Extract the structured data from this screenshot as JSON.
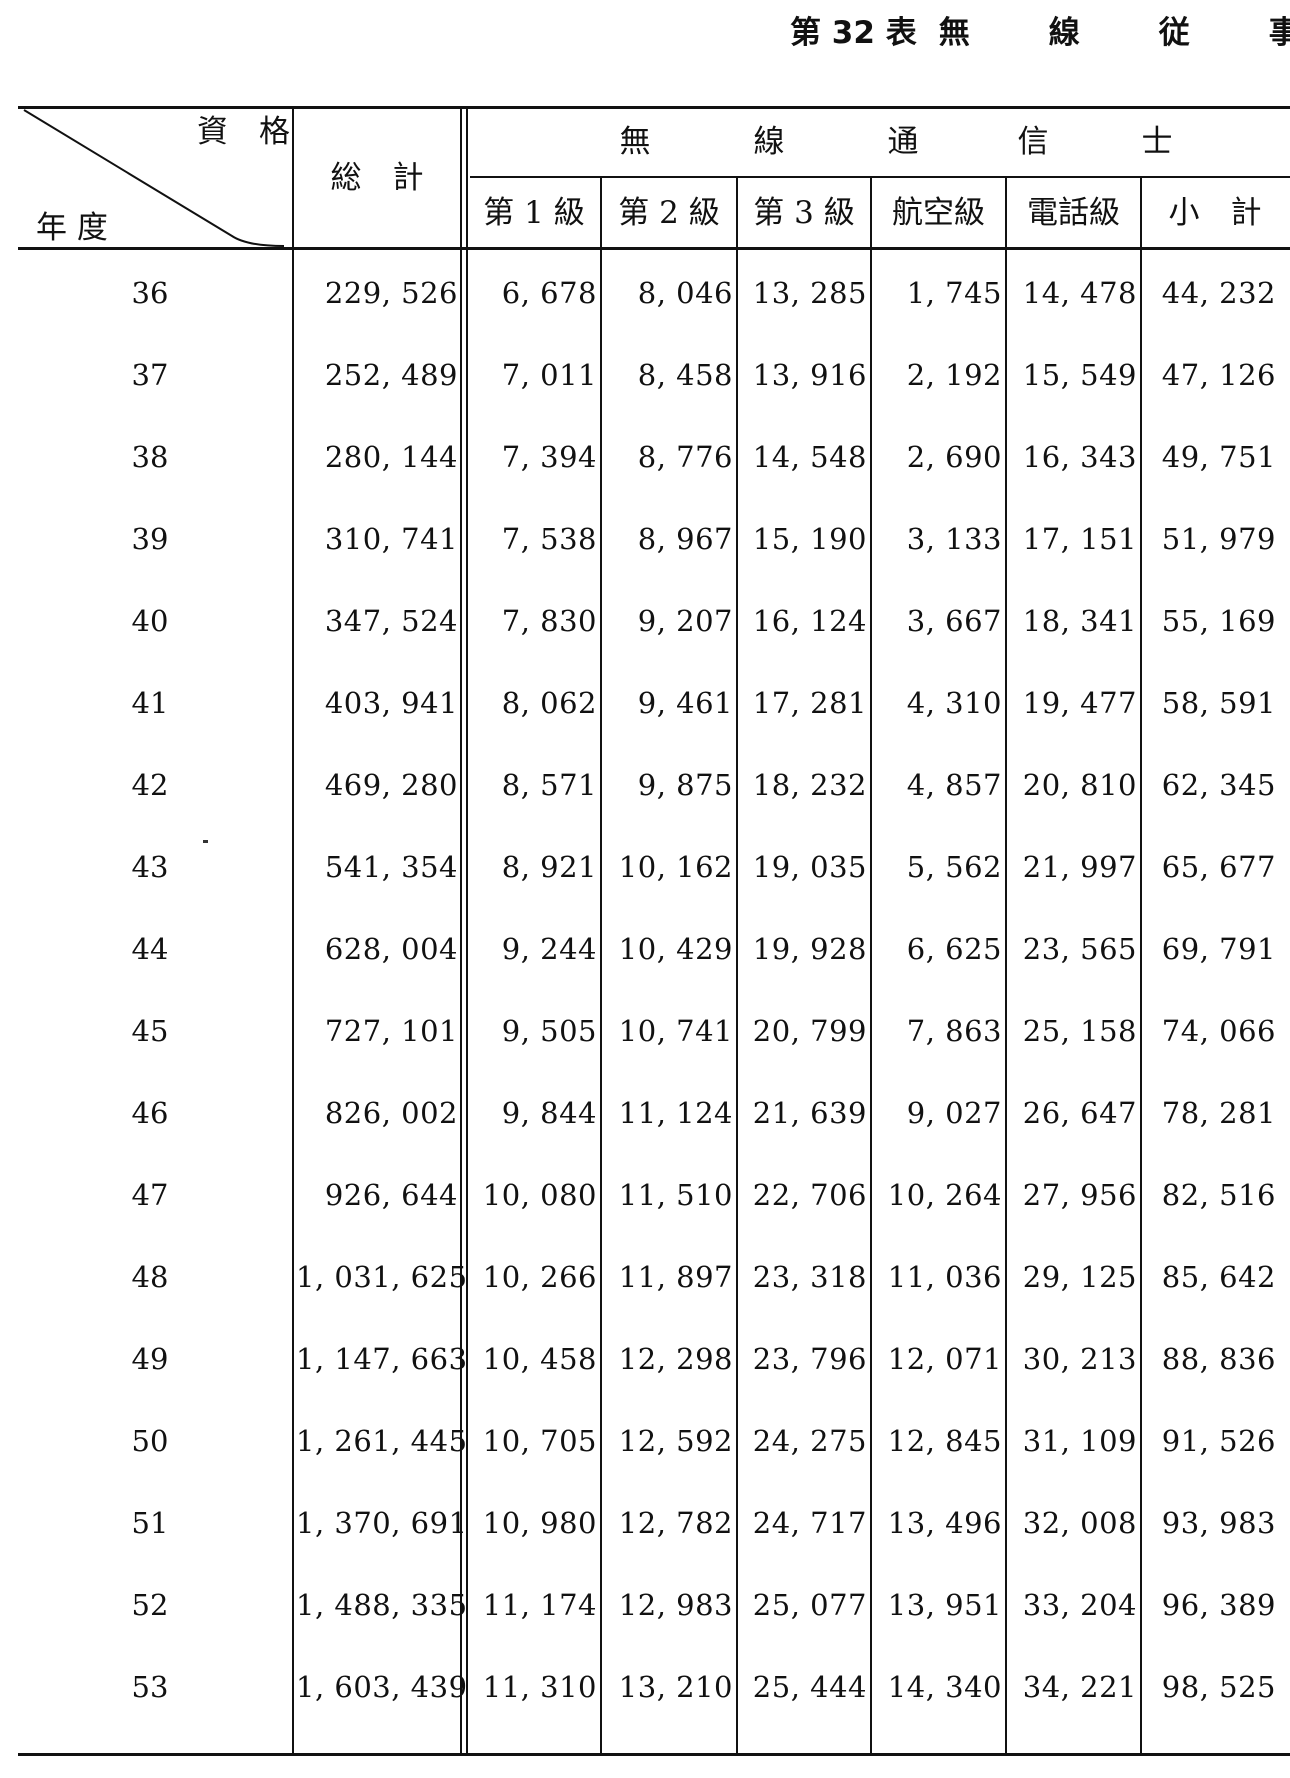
{
  "title": {
    "number": "第 32 表",
    "words": [
      "無",
      "線",
      "従",
      "事"
    ]
  },
  "header": {
    "corner_top": "資　格",
    "corner_bottom": "年 度",
    "total": "総　計",
    "group": [
      "無",
      "線",
      "通",
      "信",
      "士"
    ],
    "columns": [
      "第 1 級",
      "第 2 級",
      "第 3 級",
      "航空級",
      "電話級",
      "小　計"
    ]
  },
  "rows": [
    {
      "year": "36",
      "total": "229, 526",
      "c1": "6, 678",
      "c2": "8, 046",
      "c3": "13, 285",
      "aviation": "1, 745",
      "phone": "14, 478",
      "subtotal": "44, 232"
    },
    {
      "year": "37",
      "total": "252, 489",
      "c1": "7, 011",
      "c2": "8, 458",
      "c3": "13, 916",
      "aviation": "2, 192",
      "phone": "15, 549",
      "subtotal": "47, 126"
    },
    {
      "year": "38",
      "total": "280, 144",
      "c1": "7, 394",
      "c2": "8, 776",
      "c3": "14, 548",
      "aviation": "2, 690",
      "phone": "16, 343",
      "subtotal": "49, 751"
    },
    {
      "year": "39",
      "total": "310, 741",
      "c1": "7, 538",
      "c2": "8, 967",
      "c3": "15, 190",
      "aviation": "3, 133",
      "phone": "17, 151",
      "subtotal": "51, 979"
    },
    {
      "year": "40",
      "total": "347, 524",
      "c1": "7, 830",
      "c2": "9, 207",
      "c3": "16, 124",
      "aviation": "3, 667",
      "phone": "18, 341",
      "subtotal": "55, 169"
    },
    {
      "year": "41",
      "total": "403, 941",
      "c1": "8, 062",
      "c2": "9, 461",
      "c3": "17, 281",
      "aviation": "4, 310",
      "phone": "19, 477",
      "subtotal": "58, 591"
    },
    {
      "year": "42",
      "total": "469, 280",
      "c1": "8, 571",
      "c2": "9, 875",
      "c3": "18, 232",
      "aviation": "4, 857",
      "phone": "20, 810",
      "subtotal": "62, 345"
    },
    {
      "year": "43",
      "total": "541, 354",
      "c1": "8, 921",
      "c2": "10, 162",
      "c3": "19, 035",
      "aviation": "5, 562",
      "phone": "21, 997",
      "subtotal": "65, 677"
    },
    {
      "year": "44",
      "total": "628, 004",
      "c1": "9, 244",
      "c2": "10, 429",
      "c3": "19, 928",
      "aviation": "6, 625",
      "phone": "23, 565",
      "subtotal": "69, 791"
    },
    {
      "year": "45",
      "total": "727, 101",
      "c1": "9, 505",
      "c2": "10, 741",
      "c3": "20, 799",
      "aviation": "7, 863",
      "phone": "25, 158",
      "subtotal": "74, 066"
    },
    {
      "year": "46",
      "total": "826, 002",
      "c1": "9, 844",
      "c2": "11, 124",
      "c3": "21, 639",
      "aviation": "9, 027",
      "phone": "26, 647",
      "subtotal": "78, 281"
    },
    {
      "year": "47",
      "total": "926, 644",
      "c1": "10, 080",
      "c2": "11, 510",
      "c3": "22, 706",
      "aviation": "10, 264",
      "phone": "27, 956",
      "subtotal": "82, 516"
    },
    {
      "year": "48",
      "total": "1, 031, 625",
      "c1": "10, 266",
      "c2": "11, 897",
      "c3": "23, 318",
      "aviation": "11, 036",
      "phone": "29, 125",
      "subtotal": "85, 642"
    },
    {
      "year": "49",
      "total": "1, 147, 663",
      "c1": "10, 458",
      "c2": "12, 298",
      "c3": "23, 796",
      "aviation": "12, 071",
      "phone": "30, 213",
      "subtotal": "88, 836"
    },
    {
      "year": "50",
      "total": "1, 261, 445",
      "c1": "10, 705",
      "c2": "12, 592",
      "c3": "24, 275",
      "aviation": "12, 845",
      "phone": "31, 109",
      "subtotal": "91, 526"
    },
    {
      "year": "51",
      "total": "1, 370, 691",
      "c1": "10, 980",
      "c2": "12, 782",
      "c3": "24, 717",
      "aviation": "13, 496",
      "phone": "32, 008",
      "subtotal": "93, 983"
    },
    {
      "year": "52",
      "total": "1, 488, 335",
      "c1": "11, 174",
      "c2": "12, 983",
      "c3": "25, 077",
      "aviation": "13, 951",
      "phone": "33, 204",
      "subtotal": "96, 389"
    },
    {
      "year": "53",
      "total": "1, 603, 439",
      "c1": "11, 310",
      "c2": "13, 210",
      "c3": "25, 444",
      "aviation": "14, 340",
      "phone": "34, 221",
      "subtotal": "98, 525"
    }
  ]
}
